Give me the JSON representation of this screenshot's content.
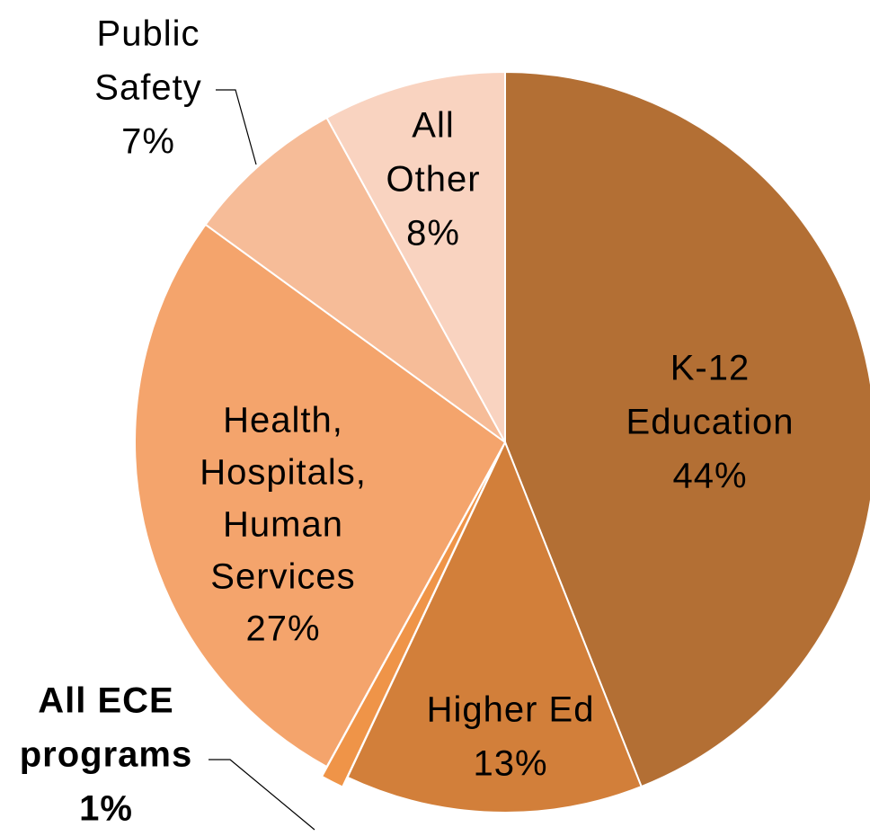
{
  "chart_data": {
    "type": "pie",
    "labels": [
      [
        "K-12",
        "Education"
      ],
      [
        "Higher Ed"
      ],
      [
        "All ECE",
        "programs"
      ],
      [
        "Health,",
        "Hospitals,",
        "Human",
        "Services"
      ],
      [
        "Public",
        "Safety"
      ],
      [
        "All",
        "Other"
      ]
    ],
    "values": [
      44,
      13,
      1,
      27,
      7,
      8
    ],
    "value_labels": [
      "44%",
      "13%",
      "1%",
      "27%",
      "7%",
      "8%"
    ],
    "colors": [
      "#b36f34",
      "#d27f3a",
      "#ef9448",
      "#f4a46c",
      "#f6bc98",
      "#f9d3c0"
    ]
  }
}
